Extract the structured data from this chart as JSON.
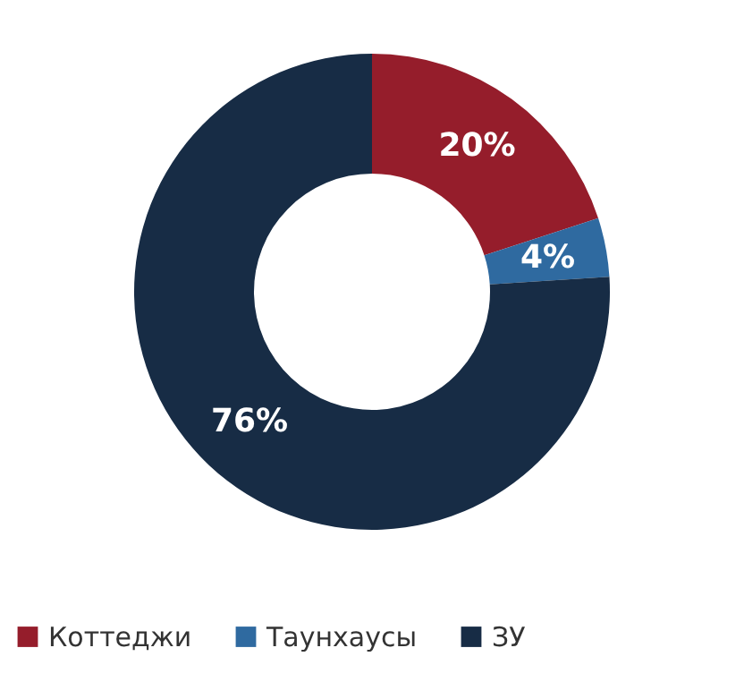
{
  "chart_data": {
    "type": "donut",
    "categories": [
      "Коттеджи",
      "Таунхаусы",
      "ЗУ"
    ],
    "values": [
      20,
      4,
      76
    ],
    "colors": [
      "#951d2b",
      "#2f6aa0",
      "#172c45"
    ],
    "value_labels": [
      "20%",
      "4%",
      "76%"
    ],
    "legend": "bottom"
  }
}
